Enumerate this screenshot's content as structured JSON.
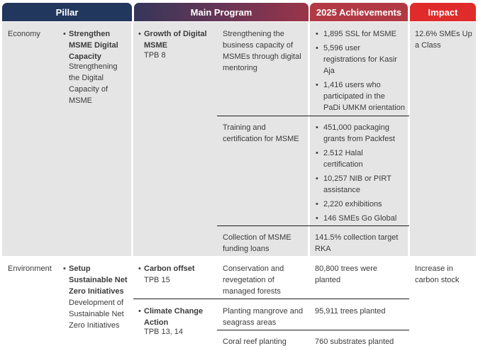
{
  "headers": {
    "pillar": "Pillar",
    "program": "Main Program",
    "achievements": "2025 Achievements",
    "impact": "Impact"
  },
  "economy": {
    "pillar_name": "Economy",
    "initiative_title_lines": [
      "Strengthen",
      "MSME Digital",
      "Capacity"
    ],
    "initiative_desc_lines": [
      "Strengthening",
      "the Digital",
      "Capacity of",
      "MSME"
    ],
    "program_title_lines": [
      "Growth of Digital",
      "MSME"
    ],
    "program_tpb": "TPB 8",
    "rows": [
      {
        "activity_lines": [
          "Strengthening the",
          "business capacity of",
          "MSMEs through digital",
          "mentoring"
        ],
        "achievements": [
          [
            "1,895 SSL for MSME"
          ],
          [
            "5,596 user",
            "registrations for Kasir",
            "Aja"
          ],
          [
            "1,416 users who",
            "participated in the",
            "PaDi UMKM orientation"
          ]
        ]
      },
      {
        "activity_lines": [
          "Training and",
          "certification for MSME"
        ],
        "achievements": [
          [
            "451,000 packaging",
            "grants from Packfest"
          ],
          [
            "2.512 Halal",
            "certification"
          ],
          [
            "10,257 NIB or PIRT",
            "assistance"
          ],
          [
            "2,220 exhibitions"
          ],
          [
            "146 SMEs Go Global"
          ]
        ]
      },
      {
        "activity_lines": [
          "Collection of MSME",
          "funding loans"
        ],
        "achievement_lines": [
          "141.5% collection target",
          "RKA"
        ]
      }
    ],
    "impact_lines": [
      "12.6% SMEs Up",
      "a Class"
    ]
  },
  "environment": {
    "pillar_name": "Environment",
    "initiative_title_lines": [
      "Setup",
      "Sustainable Net",
      "Zero Initiatives"
    ],
    "initiative_desc_lines": [
      "Development of",
      "Sustainable Net",
      "Zero Initiatives"
    ],
    "programs": [
      {
        "title_lines": [
          "Carbon offset"
        ],
        "tpb": "TPB 15"
      },
      {
        "title_lines": [
          "Climate Change",
          "Action"
        ],
        "tpb": "TPB 13, 14"
      }
    ],
    "rows": [
      {
        "activity_lines": [
          "Conservation and",
          "revegetation of",
          "managed forests"
        ],
        "achievement_lines": [
          "80,800 trees were",
          "planted"
        ]
      },
      {
        "activity_lines": [
          "Planting mangrove and",
          "seagrass areas"
        ],
        "achievement_lines": [
          "95,911 trees planted"
        ]
      },
      {
        "activity_lines": [
          "Coral reef planting"
        ],
        "achievement_lines": [
          "760 substrates planted"
        ]
      }
    ],
    "impact_lines": [
      "Increase in",
      "carbon stock"
    ]
  }
}
